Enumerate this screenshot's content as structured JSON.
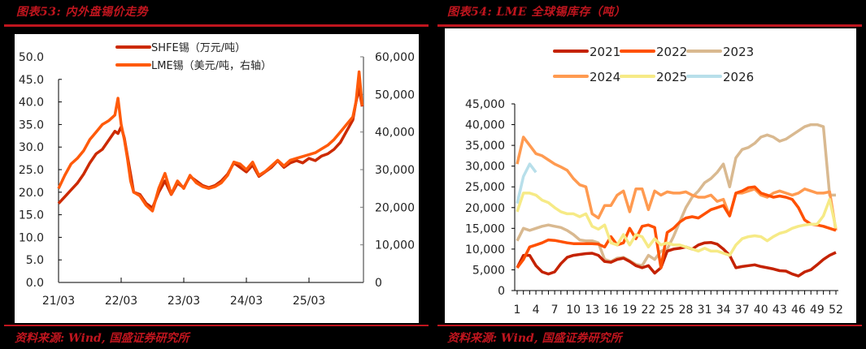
{
  "left": {
    "title": "图表53:  内外盘锡价走势",
    "source": "资料来源:  Wind,  国盛证券研究所",
    "colors": {
      "SHFE": "#cc2a00",
      "LME": "#ff5a0a"
    }
  },
  "right": {
    "title": "图表54:  LME 全球锡库存（吨）",
    "source": "资料来源:  Wind,  国盛证券研究所",
    "colors": {
      "2021": "#c42200",
      "2022": "#ff5000",
      "2023": "#d9b990",
      "2024": "#ff9a50",
      "2025": "#f6ea86",
      "2026": "#b8dfea"
    }
  },
  "chart_data": [
    {
      "type": "line",
      "title": "内外盘锡价走势",
      "x_ticks": [
        "21/03",
        "22/03",
        "23/03",
        "24/03",
        "25/03"
      ],
      "y_left": {
        "label": "SHFE锡（万元/吨）",
        "ticks": [
          "0.0",
          "5.0",
          "10.0",
          "15.0",
          "20.0",
          "25.0",
          "30.0",
          "35.0",
          "40.0",
          "45.0",
          "50.0"
        ],
        "range": [
          0,
          50
        ]
      },
      "y_right": {
        "label": "LME锡（美元/吨，右轴）",
        "ticks": [
          "0",
          "10,000",
          "20,000",
          "30,000",
          "40,000",
          "50,000",
          "60,000"
        ],
        "range": [
          0,
          60000
        ]
      },
      "legend": [
        "SHFE锡（万元/吨）",
        "LME锡（美元/吨，右轴）"
      ],
      "grid": false,
      "series": [
        {
          "name": "SHFE锡（万元/吨）",
          "axis": "left",
          "x": [
            0,
            0.1,
            0.2,
            0.3,
            0.4,
            0.5,
            0.6,
            0.7,
            0.8,
            0.9,
            0.95,
            1.0,
            1.05,
            1.1,
            1.15,
            1.2,
            1.3,
            1.4,
            1.5,
            1.6,
            1.7,
            1.8,
            1.9,
            2.0,
            2.1,
            2.2,
            2.3,
            2.4,
            2.5,
            2.6,
            2.7,
            2.8,
            2.9,
            3.0,
            3.1,
            3.2,
            3.3,
            3.4,
            3.5,
            3.6,
            3.7,
            3.8,
            3.9,
            4.0,
            4.1,
            4.2,
            4.3,
            4.4,
            4.5,
            4.6,
            4.7,
            4.75,
            4.8,
            4.85
          ],
          "values": [
            17.5,
            19.0,
            20.5,
            22.0,
            24.0,
            26.5,
            28.5,
            29.5,
            31.5,
            33.5,
            33.0,
            34.5,
            32.0,
            28.0,
            24.0,
            20.0,
            19.5,
            17.5,
            16.5,
            20.0,
            22.5,
            19.5,
            22.0,
            21.0,
            23.5,
            22.5,
            21.5,
            21.0,
            21.5,
            22.5,
            24.0,
            26.5,
            25.5,
            24.5,
            26.0,
            23.5,
            24.5,
            25.5,
            27.0,
            25.5,
            26.5,
            27.0,
            26.5,
            27.5,
            27.0,
            28.0,
            28.5,
            29.5,
            31.0,
            33.5,
            36.0,
            40.0,
            43.0,
            39.0
          ]
        },
        {
          "name": "LME锡（美元/吨，右轴）",
          "axis": "right",
          "x": [
            0,
            0.1,
            0.2,
            0.3,
            0.4,
            0.5,
            0.6,
            0.7,
            0.8,
            0.9,
            0.95,
            1.0,
            1.05,
            1.1,
            1.15,
            1.2,
            1.3,
            1.4,
            1.5,
            1.6,
            1.7,
            1.8,
            1.9,
            2.0,
            2.1,
            2.2,
            2.3,
            2.4,
            2.5,
            2.6,
            2.7,
            2.8,
            2.9,
            3.0,
            3.1,
            3.2,
            3.3,
            3.4,
            3.5,
            3.6,
            3.7,
            3.8,
            3.9,
            4.0,
            4.1,
            4.2,
            4.3,
            4.4,
            4.5,
            4.6,
            4.7,
            4.75,
            4.8,
            4.85
          ],
          "values": [
            25000,
            28500,
            31500,
            33000,
            35000,
            38000,
            40000,
            42000,
            43000,
            44500,
            49000,
            42000,
            38000,
            33000,
            27000,
            24000,
            23000,
            20500,
            19000,
            25000,
            29000,
            23500,
            27000,
            25000,
            28500,
            26500,
            25500,
            25000,
            25500,
            26500,
            28500,
            32000,
            31500,
            30000,
            32000,
            28500,
            29500,
            31000,
            32500,
            31000,
            32500,
            33000,
            33500,
            34000,
            34500,
            35500,
            36500,
            38000,
            40000,
            42000,
            44000,
            48000,
            56000,
            47000
          ]
        }
      ]
    },
    {
      "type": "line",
      "title": "LME 全球锡库存（吨）",
      "x_ticks": [
        1,
        4,
        7,
        10,
        13,
        16,
        19,
        22,
        25,
        28,
        31,
        34,
        37,
        40,
        43,
        46,
        49,
        52
      ],
      "x_range": [
        1,
        52
      ],
      "y_ticks": [
        "0",
        "5,000",
        "10,000",
        "15,000",
        "20,000",
        "25,000",
        "30,000",
        "35,000",
        "40,000",
        "45,000"
      ],
      "ylim": [
        0,
        45000
      ],
      "legend": [
        "2021",
        "2022",
        "2023",
        "2024",
        "2025",
        "2026"
      ],
      "legend_position": "top",
      "grid": false,
      "series": [
        {
          "name": "2021",
          "values": [
            5500,
            8500,
            8500,
            6000,
            4500,
            4000,
            4500,
            6500,
            8000,
            8500,
            8700,
            8900,
            9000,
            8500,
            7000,
            6800,
            7500,
            7800,
            7000,
            6000,
            5500,
            6000,
            4200,
            5500,
            9500,
            10000,
            10200,
            10500,
            10000,
            11000,
            11500,
            11600,
            11200,
            10000,
            8500,
            5500,
            5800,
            6000,
            6200,
            5800,
            5500,
            5200,
            4800,
            4700,
            4000,
            3500,
            4500,
            5000,
            6200,
            7500,
            8500,
            9200
          ]
        },
        {
          "name": "2022",
          "values": [
            5500,
            7500,
            10500,
            11000,
            11500,
            12200,
            12100,
            11800,
            11500,
            11300,
            11300,
            11300,
            11300,
            11200,
            10500,
            13000,
            11000,
            11500,
            15000,
            12500,
            15500,
            15800,
            15200,
            5500,
            14000,
            15000,
            16500,
            17500,
            17800,
            17500,
            18500,
            19500,
            20000,
            20500,
            18000,
            23500,
            24000,
            24800,
            25000,
            23500,
            23000,
            22500,
            22800,
            22500,
            22000,
            20000,
            17000,
            16000,
            15800,
            15500,
            15000,
            14500
          ]
        },
        {
          "name": "2023",
          "values": [
            12000,
            15000,
            14500,
            15000,
            15500,
            15800,
            15500,
            15200,
            14500,
            13500,
            12200,
            12000,
            12000,
            11500,
            7500,
            7000,
            7800,
            8000,
            7200,
            6300,
            6000,
            8500,
            7500,
            9500,
            10000,
            13000,
            16500,
            20000,
            22500,
            24000,
            26000,
            27000,
            28500,
            30500,
            25000,
            32000,
            34000,
            34500,
            35500,
            37000,
            37500,
            37000,
            36000,
            36500,
            37500,
            38500,
            39500,
            40000,
            40000,
            39500,
            23000,
            23000
          ]
        },
        {
          "name": "2024",
          "values": [
            30500,
            37000,
            35000,
            33000,
            32500,
            31500,
            30500,
            29800,
            29000,
            27000,
            25500,
            25000,
            18500,
            17500,
            20500,
            20500,
            23000,
            24000,
            19000,
            24500,
            24500,
            19500,
            24000,
            23000,
            23800,
            23500,
            23500,
            23800,
            23000,
            22500,
            22500,
            23000,
            21500,
            22000,
            18000,
            23500,
            23500,
            24000,
            24500,
            23000,
            22500,
            23500,
            24000,
            23500,
            23000,
            23500,
            24500,
            24000,
            23500,
            23500,
            23800,
            14500
          ]
        },
        {
          "name": "2025",
          "values": [
            19000,
            23500,
            23500,
            23000,
            21800,
            21200,
            20000,
            19000,
            18500,
            18500,
            17800,
            18500,
            15500,
            14800,
            15800,
            11500,
            11000,
            13500,
            11000,
            13500,
            13000,
            10500,
            12500,
            11000,
            11500,
            11000,
            11000,
            10500,
            10000,
            9500,
            10200,
            9500,
            9500,
            9000,
            8500,
            11000,
            12500,
            13000,
            13200,
            13000,
            12000,
            13000,
            13800,
            14200,
            15000,
            15500,
            15800,
            16000,
            16000,
            18000,
            22000,
            15000
          ]
        },
        {
          "name": "2026",
          "values": [
            21000,
            27500,
            30500,
            28500
          ]
        }
      ]
    }
  ]
}
